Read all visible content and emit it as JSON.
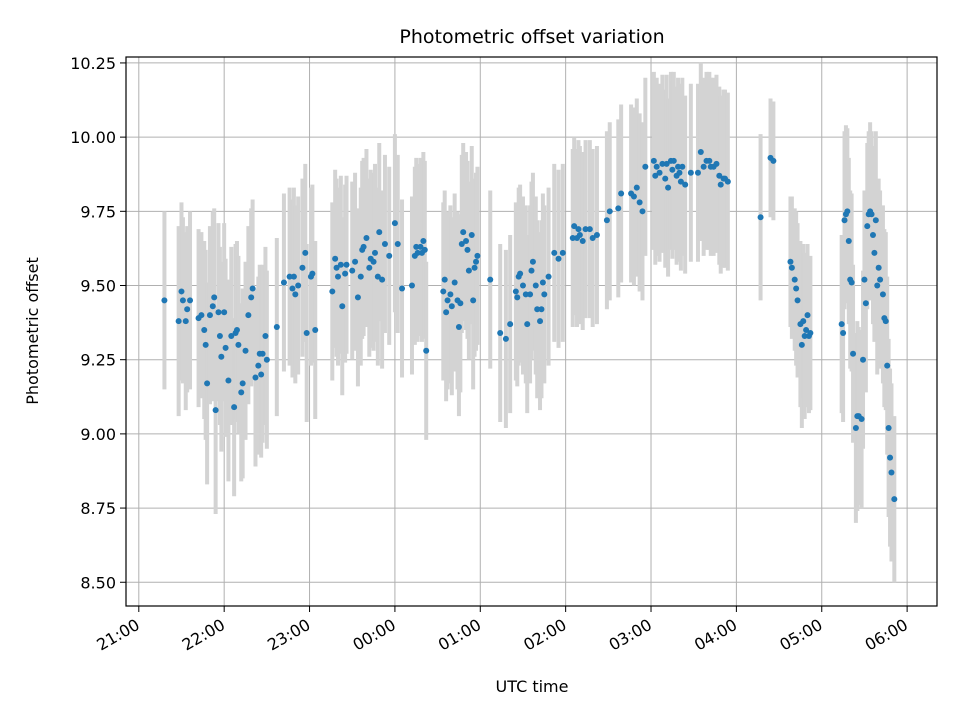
{
  "chart_data": {
    "type": "scatter",
    "title": "Photometric offset variation",
    "xlabel": "UTC time",
    "ylabel": "Photometric offset",
    "x_axis_type": "time",
    "xlim": [
      "21:00",
      "06:00"
    ],
    "xlim_ext": [
      -0.15,
      9.35
    ],
    "ylim": [
      8.42,
      10.27
    ],
    "x_ticks": [
      "21:00",
      "22:00",
      "23:00",
      "00:00",
      "01:00",
      "02:00",
      "03:00",
      "04:00",
      "05:00",
      "06:00"
    ],
    "y_ticks": [
      "8.50",
      "8.75",
      "9.00",
      "9.25",
      "9.50",
      "9.75",
      "10.00",
      "10.25"
    ],
    "y_tick_values": [
      8.5,
      8.75,
      9.0,
      9.25,
      9.5,
      9.75,
      10.0,
      10.25
    ],
    "grid": true,
    "colors": {
      "marker": "#1f77b4",
      "errorbar": "#d3d3d3",
      "grid": "#b0b0b0"
    },
    "points": [
      [
        "21:18",
        9.45,
        0.3
      ],
      [
        "21:28",
        9.38,
        0.32
      ],
      [
        "21:30",
        9.48,
        0.3
      ],
      [
        "21:31",
        9.45,
        0.28
      ],
      [
        "21:33",
        9.38,
        0.3
      ],
      [
        "21:34",
        9.42,
        0.28
      ],
      [
        "21:36",
        9.45,
        0.3
      ],
      [
        "21:42",
        9.39,
        0.3
      ],
      [
        "21:44",
        9.4,
        0.28
      ],
      [
        "21:46",
        9.35,
        0.3
      ],
      [
        "21:47",
        9.3,
        0.32
      ],
      [
        "21:48",
        9.17,
        0.34
      ],
      [
        "21:50",
        9.4,
        0.3
      ],
      [
        "21:52",
        9.43,
        0.32
      ],
      [
        "21:53",
        9.46,
        0.3
      ],
      [
        "21:54",
        9.08,
        0.35
      ],
      [
        "21:56",
        9.41,
        0.3
      ],
      [
        "21:57",
        9.33,
        0.3
      ],
      [
        "21:58",
        9.26,
        0.32
      ],
      [
        "22:00",
        9.41,
        0.3
      ],
      [
        "22:01",
        9.29,
        0.3
      ],
      [
        "22:03",
        9.18,
        0.34
      ],
      [
        "22:05",
        9.33,
        0.3
      ],
      [
        "22:07",
        9.09,
        0.3
      ],
      [
        "22:08",
        9.34,
        0.3
      ],
      [
        "22:09",
        9.35,
        0.3
      ],
      [
        "22:10",
        9.3,
        0.3
      ],
      [
        "22:12",
        9.14,
        0.3
      ],
      [
        "22:13",
        9.17,
        0.32
      ],
      [
        "22:15",
        9.28,
        0.3
      ],
      [
        "22:17",
        9.4,
        0.3
      ],
      [
        "22:19",
        9.46,
        0.3
      ],
      [
        "22:20",
        9.49,
        0.3
      ],
      [
        "22:22",
        9.19,
        0.3
      ],
      [
        "22:24",
        9.23,
        0.3
      ],
      [
        "22:25",
        9.27,
        0.3
      ],
      [
        "22:26",
        9.2,
        0.28
      ],
      [
        "22:27",
        9.27,
        0.3
      ],
      [
        "22:29",
        9.33,
        0.3
      ],
      [
        "22:30",
        9.25,
        0.3
      ],
      [
        "22:37",
        9.36,
        0.3
      ],
      [
        "22:42",
        9.51,
        0.3
      ],
      [
        "22:46",
        9.53,
        0.3
      ],
      [
        "22:48",
        9.49,
        0.3
      ],
      [
        "22:49",
        9.53,
        0.3
      ],
      [
        "22:50",
        9.47,
        0.3
      ],
      [
        "22:52",
        9.5,
        0.3
      ],
      [
        "22:55",
        9.56,
        0.3
      ],
      [
        "22:57",
        9.61,
        0.3
      ],
      [
        "22:58",
        9.34,
        0.3
      ],
      [
        "23:01",
        9.53,
        0.3
      ],
      [
        "23:02",
        9.54,
        0.3
      ],
      [
        "23:04",
        9.35,
        0.3
      ],
      [
        "23:16",
        9.48,
        0.3
      ],
      [
        "23:18",
        9.59,
        0.3
      ],
      [
        "23:19",
        9.56,
        0.3
      ],
      [
        "23:20",
        9.53,
        0.3
      ],
      [
        "23:22",
        9.57,
        0.3
      ],
      [
        "23:23",
        9.43,
        0.3
      ],
      [
        "23:25",
        9.54,
        0.3
      ],
      [
        "23:26",
        9.57,
        0.3
      ],
      [
        "23:30",
        9.55,
        0.3
      ],
      [
        "23:32",
        9.58,
        0.3
      ],
      [
        "23:34",
        9.46,
        0.3
      ],
      [
        "23:36",
        9.53,
        0.3
      ],
      [
        "23:37",
        9.62,
        0.3
      ],
      [
        "23:38",
        9.63,
        0.3
      ],
      [
        "23:40",
        9.66,
        0.3
      ],
      [
        "23:42",
        9.56,
        0.3
      ],
      [
        "23:43",
        9.59,
        0.3
      ],
      [
        "23:45",
        9.58,
        0.3
      ],
      [
        "23:46",
        9.61,
        0.3
      ],
      [
        "23:48",
        9.53,
        0.3
      ],
      [
        "23:49",
        9.68,
        0.3
      ],
      [
        "23:51",
        9.52,
        0.3
      ],
      [
        "23:53",
        9.64,
        0.3
      ],
      [
        "23:56",
        9.6,
        0.3
      ],
      [
        "00:00",
        9.71,
        0.3
      ],
      [
        "00:02",
        9.64,
        0.3
      ],
      [
        "00:05",
        9.49,
        0.3
      ],
      [
        "00:12",
        9.5,
        0.3
      ],
      [
        "00:14",
        9.6,
        0.3
      ],
      [
        "00:15",
        9.63,
        0.3
      ],
      [
        "00:16",
        9.61,
        0.3
      ],
      [
        "00:18",
        9.63,
        0.3
      ],
      [
        "00:19",
        9.61,
        0.3
      ],
      [
        "00:20",
        9.65,
        0.3
      ],
      [
        "00:21",
        9.62,
        0.3
      ],
      [
        "00:22",
        9.28,
        0.3
      ],
      [
        "00:34",
        9.48,
        0.3
      ],
      [
        "00:35",
        9.52,
        0.3
      ],
      [
        "00:36",
        9.41,
        0.3
      ],
      [
        "00:37",
        9.45,
        0.3
      ],
      [
        "00:39",
        9.47,
        0.3
      ],
      [
        "00:40",
        9.43,
        0.3
      ],
      [
        "00:42",
        9.51,
        0.3
      ],
      [
        "00:44",
        9.45,
        0.3
      ],
      [
        "00:45",
        9.36,
        0.3
      ],
      [
        "00:46",
        9.44,
        0.3
      ],
      [
        "00:47",
        9.64,
        0.3
      ],
      [
        "00:48",
        9.68,
        0.3
      ],
      [
        "00:50",
        9.65,
        0.3
      ],
      [
        "00:51",
        9.62,
        0.3
      ],
      [
        "00:52",
        9.55,
        0.3
      ],
      [
        "00:54",
        9.67,
        0.3
      ],
      [
        "00:55",
        9.45,
        0.3
      ],
      [
        "00:56",
        9.56,
        0.3
      ],
      [
        "00:57",
        9.58,
        0.3
      ],
      [
        "00:58",
        9.6,
        0.3
      ],
      [
        "01:07",
        9.52,
        0.3
      ],
      [
        "01:14",
        9.34,
        0.3
      ],
      [
        "01:18",
        9.32,
        0.3
      ],
      [
        "01:21",
        9.37,
        0.3
      ],
      [
        "01:25",
        9.48,
        0.3
      ],
      [
        "01:26",
        9.46,
        0.3
      ],
      [
        "01:27",
        9.53,
        0.3
      ],
      [
        "01:28",
        9.54,
        0.3
      ],
      [
        "01:30",
        9.5,
        0.3
      ],
      [
        "01:32",
        9.47,
        0.3
      ],
      [
        "01:33",
        9.37,
        0.3
      ],
      [
        "01:35",
        9.47,
        0.3
      ],
      [
        "01:36",
        9.55,
        0.3
      ],
      [
        "01:37",
        9.58,
        0.3
      ],
      [
        "01:39",
        9.5,
        0.3
      ],
      [
        "01:40",
        9.42,
        0.3
      ],
      [
        "01:42",
        9.38,
        0.3
      ],
      [
        "01:43",
        9.42,
        0.3
      ],
      [
        "01:44",
        9.51,
        0.3
      ],
      [
        "01:45",
        9.47,
        0.3
      ],
      [
        "01:48",
        9.53,
        0.3
      ],
      [
        "01:52",
        9.61,
        0.3
      ],
      [
        "01:55",
        9.59,
        0.3
      ],
      [
        "01:58",
        9.61,
        0.3
      ],
      [
        "02:05",
        9.66,
        0.3
      ],
      [
        "02:06",
        9.7,
        0.3
      ],
      [
        "02:08",
        9.66,
        0.3
      ],
      [
        "02:09",
        9.69,
        0.3
      ],
      [
        "02:10",
        9.67,
        0.3
      ],
      [
        "02:12",
        9.65,
        0.3
      ],
      [
        "02:14",
        9.69,
        0.3
      ],
      [
        "02:17",
        9.69,
        0.3
      ],
      [
        "02:19",
        9.66,
        0.3
      ],
      [
        "02:22",
        9.67,
        0.3
      ],
      [
        "02:29",
        9.72,
        0.3
      ],
      [
        "02:31",
        9.75,
        0.3
      ],
      [
        "02:37",
        9.76,
        0.3
      ],
      [
        "02:39",
        9.81,
        0.3
      ],
      [
        "02:46",
        9.81,
        0.3
      ],
      [
        "02:48",
        9.8,
        0.3
      ],
      [
        "02:50",
        9.83,
        0.3
      ],
      [
        "02:52",
        9.78,
        0.3
      ],
      [
        "02:54",
        9.75,
        0.3
      ],
      [
        "02:56",
        9.9,
        0.3
      ],
      [
        "03:02",
        9.92,
        0.3
      ],
      [
        "03:03",
        9.87,
        0.3
      ],
      [
        "03:04",
        9.9,
        0.3
      ],
      [
        "03:06",
        9.88,
        0.3
      ],
      [
        "03:08",
        9.91,
        0.3
      ],
      [
        "03:10",
        9.86,
        0.3
      ],
      [
        "03:11",
        9.91,
        0.3
      ],
      [
        "03:12",
        9.83,
        0.3
      ],
      [
        "03:14",
        9.92,
        0.3
      ],
      [
        "03:15",
        9.89,
        0.3
      ],
      [
        "03:16",
        9.92,
        0.3
      ],
      [
        "03:18",
        9.87,
        0.3
      ],
      [
        "03:19",
        9.9,
        0.3
      ],
      [
        "03:20",
        9.88,
        0.3
      ],
      [
        "03:21",
        9.85,
        0.3
      ],
      [
        "03:22",
        9.9,
        0.3
      ],
      [
        "03:24",
        9.84,
        0.3
      ],
      [
        "03:28",
        9.88,
        0.3
      ],
      [
        "03:33",
        9.88,
        0.3
      ],
      [
        "03:35",
        9.95,
        0.3
      ],
      [
        "03:37",
        9.9,
        0.3
      ],
      [
        "03:39",
        9.92,
        0.3
      ],
      [
        "03:41",
        9.92,
        0.3
      ],
      [
        "03:42",
        9.9,
        0.3
      ],
      [
        "03:44",
        9.9,
        0.3
      ],
      [
        "03:46",
        9.91,
        0.3
      ],
      [
        "03:48",
        9.87,
        0.3
      ],
      [
        "03:49",
        9.84,
        0.3
      ],
      [
        "03:51",
        9.86,
        0.3
      ],
      [
        "03:52",
        9.86,
        0.3
      ],
      [
        "03:54",
        9.85,
        0.3
      ],
      [
        "04:17",
        9.73,
        0.28
      ],
      [
        "04:24",
        9.93,
        0.2
      ],
      [
        "04:26",
        9.92,
        0.2
      ],
      [
        "04:38",
        9.58,
        0.22
      ],
      [
        "04:39",
        9.56,
        0.24
      ],
      [
        "04:41",
        9.52,
        0.24
      ],
      [
        "04:42",
        9.49,
        0.26
      ],
      [
        "04:43",
        9.45,
        0.26
      ],
      [
        "04:45",
        9.37,
        0.28
      ],
      [
        "04:46",
        9.3,
        0.28
      ],
      [
        "04:47",
        9.38,
        0.26
      ],
      [
        "04:48",
        9.33,
        0.28
      ],
      [
        "04:49",
        9.35,
        0.26
      ],
      [
        "04:50",
        9.4,
        0.24
      ],
      [
        "04:51",
        9.33,
        0.26
      ],
      [
        "04:52",
        9.34,
        0.26
      ],
      [
        "05:14",
        9.37,
        0.3
      ],
      [
        "05:15",
        9.34,
        0.3
      ],
      [
        "05:16",
        9.72,
        0.3
      ],
      [
        "05:17",
        9.74,
        0.3
      ],
      [
        "05:18",
        9.75,
        0.28
      ],
      [
        "05:19",
        9.65,
        0.28
      ],
      [
        "05:20",
        9.52,
        0.3
      ],
      [
        "05:21",
        9.51,
        0.3
      ],
      [
        "05:22",
        9.27,
        0.3
      ],
      [
        "05:24",
        9.02,
        0.32
      ],
      [
        "05:25",
        9.06,
        0.32
      ],
      [
        "05:26",
        9.06,
        0.3
      ],
      [
        "05:28",
        9.05,
        0.3
      ],
      [
        "05:29",
        9.25,
        0.3
      ],
      [
        "05:30",
        9.52,
        0.3
      ],
      [
        "05:31",
        9.44,
        0.3
      ],
      [
        "05:32",
        9.7,
        0.28
      ],
      [
        "05:33",
        9.74,
        0.28
      ],
      [
        "05:34",
        9.75,
        0.3
      ],
      [
        "05:35",
        9.74,
        0.28
      ],
      [
        "05:36",
        9.67,
        0.3
      ],
      [
        "05:37",
        9.61,
        0.3
      ],
      [
        "05:38",
        9.72,
        0.3
      ],
      [
        "05:39",
        9.5,
        0.3
      ],
      [
        "05:40",
        9.56,
        0.3
      ],
      [
        "05:41",
        9.52,
        0.3
      ],
      [
        "05:43",
        9.47,
        0.3
      ],
      [
        "05:44",
        9.39,
        0.3
      ],
      [
        "05:45",
        9.38,
        0.3
      ],
      [
        "05:46",
        9.23,
        0.3
      ],
      [
        "05:47",
        9.02,
        0.3
      ],
      [
        "05:48",
        8.92,
        0.3
      ],
      [
        "05:49",
        8.87,
        0.3
      ],
      [
        "05:51",
        8.78,
        0.28
      ]
    ]
  }
}
